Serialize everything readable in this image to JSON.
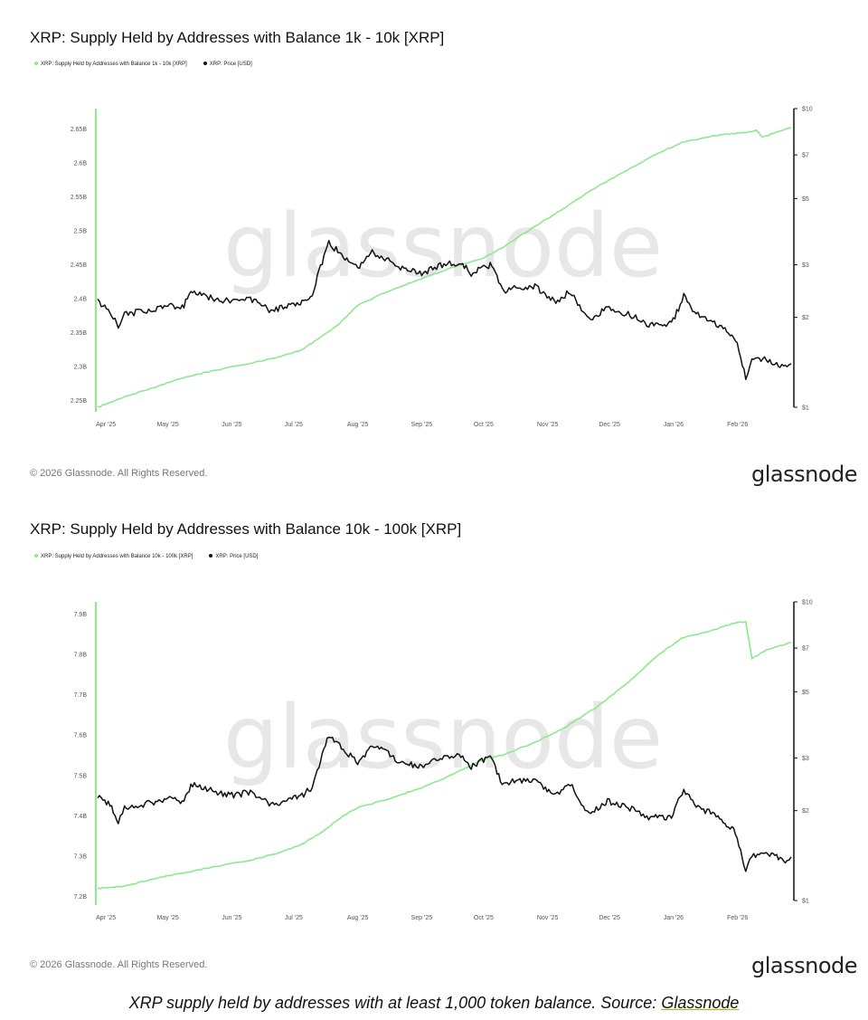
{
  "caption": {
    "text": "XRP supply held by addresses with at least 1,000 token balance. Source: ",
    "source_link": "Glassnode"
  },
  "footer": {
    "copyright": "© 2026 Glassnode. All Rights Reserved.",
    "brand": "glassnode"
  },
  "watermark": "glassnode",
  "colors": {
    "supply": "#8ee88e",
    "price": "#111111",
    "axis": "#8ee88e"
  },
  "chart_data": [
    {
      "type": "line",
      "title": "XRP: Supply Held by Addresses with Balance 1k - 10k [XRP]",
      "legend": [
        "XRP: Supply Held by Addresses with Balance 1k - 10k [XRP]",
        "XRP: Price [USD]"
      ],
      "x_tick_labels": [
        "Apr '25",
        "May '25",
        "Jun '25",
        "Jul '25",
        "Aug '25",
        "Sep '25",
        "Oct '25",
        "Nov '25",
        "Dec '25",
        "Jan '26",
        "Feb '26"
      ],
      "x_range": [
        "2025-03-28",
        "2026-02-27"
      ],
      "y_left": {
        "ticks": [
          2.25,
          2.3,
          2.35,
          2.4,
          2.45,
          2.5,
          2.55,
          2.6,
          2.65
        ],
        "tick_labels": [
          "2.25B",
          "2.3B",
          "2.35B",
          "2.4B",
          "2.45B",
          "2.5B",
          "2.55B",
          "2.6B",
          "2.65B"
        ],
        "range": [
          2.24,
          2.68
        ],
        "unit": "B"
      },
      "y_right": {
        "scale": "log",
        "ticks": [
          1,
          2,
          3,
          5,
          7,
          10
        ],
        "tick_labels": [
          "$1",
          "$2",
          "$3",
          "$5",
          "$7",
          "$10"
        ],
        "range": [
          1,
          10
        ]
      },
      "series": [
        {
          "name": "XRP: Supply Held by Addresses with Balance 1k - 10k [XRP]",
          "axis": "left",
          "points": [
            [
              "2025-03-28",
              2.24
            ],
            [
              "2025-04-10",
              2.255
            ],
            [
              "2025-04-25",
              2.27
            ],
            [
              "2025-05-10",
              2.285
            ],
            [
              "2025-05-25",
              2.295
            ],
            [
              "2025-06-10",
              2.305
            ],
            [
              "2025-06-25",
              2.315
            ],
            [
              "2025-07-05",
              2.325
            ],
            [
              "2025-07-15",
              2.345
            ],
            [
              "2025-07-22",
              2.36
            ],
            [
              "2025-08-01",
              2.39
            ],
            [
              "2025-08-15",
              2.41
            ],
            [
              "2025-09-01",
              2.43
            ],
            [
              "2025-09-15",
              2.445
            ],
            [
              "2025-10-01",
              2.46
            ],
            [
              "2025-10-10",
              2.475
            ],
            [
              "2025-10-25",
              2.505
            ],
            [
              "2025-11-10",
              2.535
            ],
            [
              "2025-11-25",
              2.565
            ],
            [
              "2025-12-10",
              2.59
            ],
            [
              "2025-12-25",
              2.615
            ],
            [
              "2026-01-05",
              2.63
            ],
            [
              "2026-01-20",
              2.64
            ],
            [
              "2026-02-05",
              2.645
            ],
            [
              "2026-02-10",
              2.648
            ],
            [
              "2026-02-13",
              2.638
            ],
            [
              "2026-02-20",
              2.645
            ],
            [
              "2026-02-27",
              2.652
            ]
          ]
        },
        {
          "name": "XRP: Price [USD]",
          "axis": "right",
          "points": [
            [
              "2025-03-28",
              2.25
            ],
            [
              "2025-04-03",
              2.1
            ],
            [
              "2025-04-07",
              1.85
            ],
            [
              "2025-04-10",
              2.05
            ],
            [
              "2025-04-20",
              2.1
            ],
            [
              "2025-05-01",
              2.2
            ],
            [
              "2025-05-08",
              2.15
            ],
            [
              "2025-05-13",
              2.45
            ],
            [
              "2025-05-20",
              2.35
            ],
            [
              "2025-06-01",
              2.25
            ],
            [
              "2025-06-10",
              2.3
            ],
            [
              "2025-06-20",
              2.1
            ],
            [
              "2025-07-01",
              2.2
            ],
            [
              "2025-07-05",
              2.25
            ],
            [
              "2025-07-10",
              2.4
            ],
            [
              "2025-07-14",
              2.95
            ],
            [
              "2025-07-18",
              3.55
            ],
            [
              "2025-07-25",
              3.2
            ],
            [
              "2025-08-01",
              2.9
            ],
            [
              "2025-08-08",
              3.3
            ],
            [
              "2025-08-15",
              3.15
            ],
            [
              "2025-08-20",
              2.95
            ],
            [
              "2025-09-01",
              2.8
            ],
            [
              "2025-09-10",
              3.0
            ],
            [
              "2025-09-20",
              3.05
            ],
            [
              "2025-09-25",
              2.8
            ],
            [
              "2025-10-01",
              2.95
            ],
            [
              "2025-10-05",
              3.0
            ],
            [
              "2025-10-10",
              2.45
            ],
            [
              "2025-10-15",
              2.5
            ],
            [
              "2025-10-25",
              2.55
            ],
            [
              "2025-11-05",
              2.25
            ],
            [
              "2025-11-12",
              2.45
            ],
            [
              "2025-11-21",
              1.95
            ],
            [
              "2025-11-30",
              2.15
            ],
            [
              "2025-12-10",
              2.05
            ],
            [
              "2025-12-20",
              1.9
            ],
            [
              "2025-12-31",
              1.9
            ],
            [
              "2026-01-06",
              2.35
            ],
            [
              "2026-01-12",
              2.05
            ],
            [
              "2026-01-20",
              1.95
            ],
            [
              "2026-01-31",
              1.7
            ],
            [
              "2026-02-05",
              1.25
            ],
            [
              "2026-02-08",
              1.42
            ],
            [
              "2026-02-15",
              1.45
            ],
            [
              "2026-02-20",
              1.4
            ],
            [
              "2026-02-25",
              1.35
            ],
            [
              "2026-02-27",
              1.4
            ]
          ]
        }
      ]
    },
    {
      "type": "line",
      "title": "XRP: Supply Held by Addresses with Balance 10k - 100k [XRP]",
      "legend": [
        "XRP: Supply Held by Addresses with Balance 10k - 100k [XRP]",
        "XRP: Price [USD]"
      ],
      "x_tick_labels": [
        "Apr '25",
        "May '25",
        "Jun '25",
        "Jul '25",
        "Aug '25",
        "Sep '25",
        "Oct '25",
        "Nov '25",
        "Dec '25",
        "Jan '26",
        "Feb '26"
      ],
      "x_range": [
        "2025-03-28",
        "2026-02-27"
      ],
      "y_left": {
        "ticks": [
          7.2,
          7.3,
          7.4,
          7.5,
          7.6,
          7.7,
          7.8,
          7.9
        ],
        "tick_labels": [
          "7.2B",
          "7.3B",
          "7.4B",
          "7.5B",
          "7.6B",
          "7.7B",
          "7.8B",
          "7.9B"
        ],
        "range": [
          7.19,
          7.93
        ],
        "unit": "B"
      },
      "y_right": {
        "scale": "log",
        "ticks": [
          1,
          2,
          3,
          5,
          7,
          10
        ],
        "tick_labels": [
          "$1",
          "$2",
          "$3",
          "$5",
          "$7",
          "$10"
        ],
        "range": [
          1,
          10
        ]
      },
      "series": [
        {
          "name": "XRP: Supply Held by Addresses with Balance 10k - 100k [XRP]",
          "axis": "left",
          "points": [
            [
              "2025-03-28",
              7.22
            ],
            [
              "2025-04-10",
              7.225
            ],
            [
              "2025-04-25",
              7.245
            ],
            [
              "2025-05-10",
              7.26
            ],
            [
              "2025-05-25",
              7.275
            ],
            [
              "2025-06-10",
              7.29
            ],
            [
              "2025-06-25",
              7.31
            ],
            [
              "2025-07-05",
              7.33
            ],
            [
              "2025-07-15",
              7.36
            ],
            [
              "2025-07-25",
              7.4
            ],
            [
              "2025-08-01",
              7.42
            ],
            [
              "2025-08-15",
              7.44
            ],
            [
              "2025-09-01",
              7.47
            ],
            [
              "2025-09-15",
              7.5
            ],
            [
              "2025-10-01",
              7.54
            ],
            [
              "2025-10-10",
              7.55
            ],
            [
              "2025-10-25",
              7.58
            ],
            [
              "2025-11-10",
              7.62
            ],
            [
              "2025-11-25",
              7.67
            ],
            [
              "2025-12-10",
              7.73
            ],
            [
              "2025-12-25",
              7.8
            ],
            [
              "2026-01-05",
              7.84
            ],
            [
              "2026-01-20",
              7.86
            ],
            [
              "2026-02-01",
              7.88
            ],
            [
              "2026-02-05",
              7.88
            ],
            [
              "2026-02-08",
              7.79
            ],
            [
              "2026-02-15",
              7.81
            ],
            [
              "2026-02-27",
              7.83
            ]
          ]
        },
        {
          "name": "XRP: Price [USD]",
          "axis": "right",
          "points": [
            [
              "2025-03-28",
              2.25
            ],
            [
              "2025-04-03",
              2.1
            ],
            [
              "2025-04-07",
              1.85
            ],
            [
              "2025-04-10",
              2.05
            ],
            [
              "2025-04-20",
              2.1
            ],
            [
              "2025-05-01",
              2.2
            ],
            [
              "2025-05-08",
              2.15
            ],
            [
              "2025-05-13",
              2.45
            ],
            [
              "2025-05-20",
              2.35
            ],
            [
              "2025-06-01",
              2.25
            ],
            [
              "2025-06-10",
              2.3
            ],
            [
              "2025-06-20",
              2.1
            ],
            [
              "2025-07-01",
              2.2
            ],
            [
              "2025-07-05",
              2.25
            ],
            [
              "2025-07-10",
              2.4
            ],
            [
              "2025-07-14",
              2.95
            ],
            [
              "2025-07-18",
              3.55
            ],
            [
              "2025-07-25",
              3.2
            ],
            [
              "2025-08-01",
              2.9
            ],
            [
              "2025-08-08",
              3.3
            ],
            [
              "2025-08-15",
              3.15
            ],
            [
              "2025-08-20",
              2.95
            ],
            [
              "2025-09-01",
              2.8
            ],
            [
              "2025-09-10",
              3.0
            ],
            [
              "2025-09-20",
              3.05
            ],
            [
              "2025-09-25",
              2.8
            ],
            [
              "2025-10-01",
              2.95
            ],
            [
              "2025-10-05",
              3.0
            ],
            [
              "2025-10-10",
              2.45
            ],
            [
              "2025-10-15",
              2.5
            ],
            [
              "2025-10-25",
              2.55
            ],
            [
              "2025-11-05",
              2.25
            ],
            [
              "2025-11-12",
              2.45
            ],
            [
              "2025-11-21",
              1.95
            ],
            [
              "2025-11-30",
              2.15
            ],
            [
              "2025-12-10",
              2.05
            ],
            [
              "2025-12-20",
              1.9
            ],
            [
              "2025-12-31",
              1.9
            ],
            [
              "2026-01-06",
              2.35
            ],
            [
              "2026-01-12",
              2.05
            ],
            [
              "2026-01-20",
              1.95
            ],
            [
              "2026-01-31",
              1.7
            ],
            [
              "2026-02-05",
              1.25
            ],
            [
              "2026-02-08",
              1.42
            ],
            [
              "2026-02-15",
              1.45
            ],
            [
              "2026-02-20",
              1.4
            ],
            [
              "2026-02-25",
              1.35
            ],
            [
              "2026-02-27",
              1.4
            ]
          ]
        }
      ]
    }
  ]
}
